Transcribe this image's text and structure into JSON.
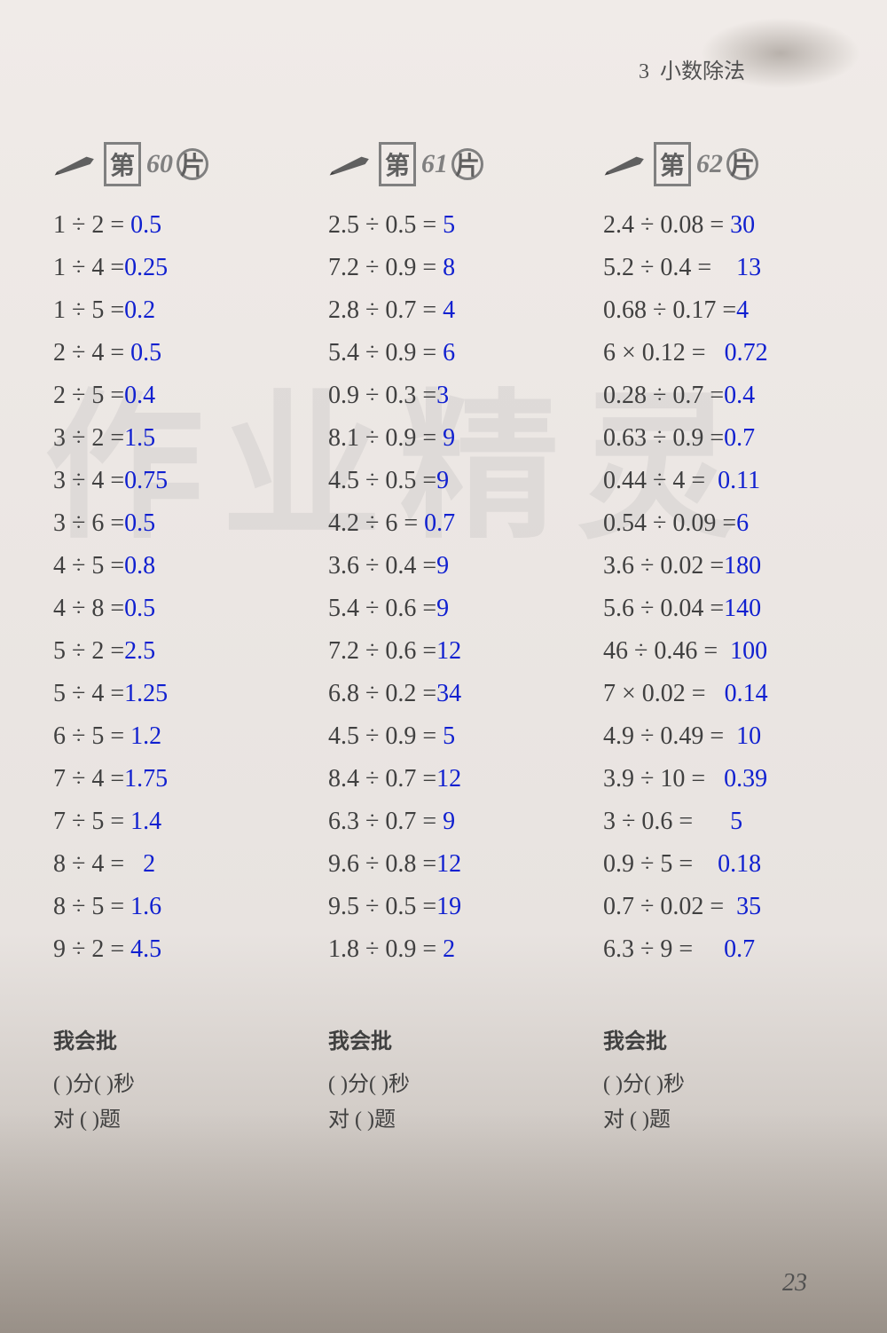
{
  "chapter": {
    "number": "3",
    "title": "小数除法"
  },
  "watermark": "作业精灵",
  "columns": [
    {
      "header": {
        "di": "第",
        "num": "60",
        "pian": "片"
      },
      "problems": [
        {
          "q": "1 ÷ 2 = ",
          "a": "0.5"
        },
        {
          "q": "1 ÷ 4 =",
          "a": "0.25"
        },
        {
          "q": "1 ÷ 5 =",
          "a": "0.2"
        },
        {
          "q": "2 ÷ 4 = ",
          "a": "0.5"
        },
        {
          "q": "2 ÷ 5 =",
          "a": "0.4"
        },
        {
          "q": "3 ÷ 2 =",
          "a": "1.5"
        },
        {
          "q": "3 ÷ 4 =",
          "a": "0.75"
        },
        {
          "q": "3 ÷ 6 =",
          "a": "0.5"
        },
        {
          "q": "4 ÷ 5 =",
          "a": "0.8"
        },
        {
          "q": "4 ÷ 8 =",
          "a": "0.5"
        },
        {
          "q": "5 ÷ 2 =",
          "a": "2.5"
        },
        {
          "q": "5 ÷ 4 =",
          "a": "1.25"
        },
        {
          "q": "6 ÷ 5 = ",
          "a": "1.2"
        },
        {
          "q": "7 ÷ 4 =",
          "a": "1.75"
        },
        {
          "q": "7 ÷ 5 = ",
          "a": "1.4"
        },
        {
          "q": "8 ÷ 4 =   ",
          "a": "2"
        },
        {
          "q": "8 ÷ 5 = ",
          "a": "1.6"
        },
        {
          "q": "9 ÷ 2 = ",
          "a": "4.5"
        }
      ]
    },
    {
      "header": {
        "di": "第",
        "num": "61",
        "pian": "片"
      },
      "problems": [
        {
          "q": "2.5 ÷ 0.5 = ",
          "a": "5"
        },
        {
          "q": "7.2 ÷ 0.9 = ",
          "a": "8"
        },
        {
          "q": "2.8 ÷ 0.7 = ",
          "a": "4"
        },
        {
          "q": "5.4 ÷ 0.9 = ",
          "a": "6"
        },
        {
          "q": "0.9 ÷ 0.3 =",
          "a": "3"
        },
        {
          "q": "8.1 ÷ 0.9 = ",
          "a": "9"
        },
        {
          "q": "4.5 ÷ 0.5 =",
          "a": "9"
        },
        {
          "q": "4.2 ÷ 6 = ",
          "a": "0.7"
        },
        {
          "q": "3.6 ÷ 0.4 =",
          "a": "9"
        },
        {
          "q": "5.4 ÷ 0.6 =",
          "a": "9"
        },
        {
          "q": "7.2 ÷ 0.6 =",
          "a": "12"
        },
        {
          "q": "6.8 ÷ 0.2 =",
          "a": "34"
        },
        {
          "q": "4.5 ÷ 0.9 = ",
          "a": "5"
        },
        {
          "q": "8.4 ÷ 0.7 =",
          "a": "12"
        },
        {
          "q": "6.3 ÷ 0.7 = ",
          "a": "9"
        },
        {
          "q": "9.6 ÷ 0.8 =",
          "a": "12"
        },
        {
          "q": "9.5 ÷ 0.5 =",
          "a": "19"
        },
        {
          "q": "1.8 ÷ 0.9 = ",
          "a": "2"
        }
      ]
    },
    {
      "header": {
        "di": "第",
        "num": "62",
        "pian": "片"
      },
      "problems": [
        {
          "q": "2.4 ÷ 0.08 = ",
          "a": "30"
        },
        {
          "q": "5.2 ÷ 0.4 =    ",
          "a": "13"
        },
        {
          "q": "0.68 ÷ 0.17 =",
          "a": "4"
        },
        {
          "q": "6 × 0.12 =   ",
          "a": "0.72"
        },
        {
          "q": "0.28 ÷ 0.7 =",
          "a": "0.4"
        },
        {
          "q": "0.63 ÷ 0.9 =",
          "a": "0.7"
        },
        {
          "q": "0.44 ÷ 4 =  ",
          "a": "0.11"
        },
        {
          "q": "0.54 ÷ 0.09 =",
          "a": "6"
        },
        {
          "q": "3.6 ÷ 0.02 =",
          "a": "180"
        },
        {
          "q": "5.6 ÷ 0.04 =",
          "a": "140"
        },
        {
          "q": "46 ÷ 0.46 =  ",
          "a": "100"
        },
        {
          "q": "7 × 0.02 =   ",
          "a": "0.14"
        },
        {
          "q": "4.9 ÷ 0.49 =  ",
          "a": "10"
        },
        {
          "q": "3.9 ÷ 10 =   ",
          "a": "0.39"
        },
        {
          "q": "3 ÷ 0.6 =      ",
          "a": "5"
        },
        {
          "q": "0.9 ÷ 5 =    ",
          "a": "0.18"
        },
        {
          "q": "0.7 ÷ 0.02 =  ",
          "a": "35"
        },
        {
          "q": "6.3 ÷ 9 =     ",
          "a": "0.7"
        }
      ]
    }
  ],
  "footer": {
    "title": "我会批",
    "line1_pre": "(     )",
    "line1_mid": "分",
    "line1_post": "(     )秒",
    "line2_pre": "对  (     )",
    "line2_post": "题"
  },
  "page_number": "23"
}
